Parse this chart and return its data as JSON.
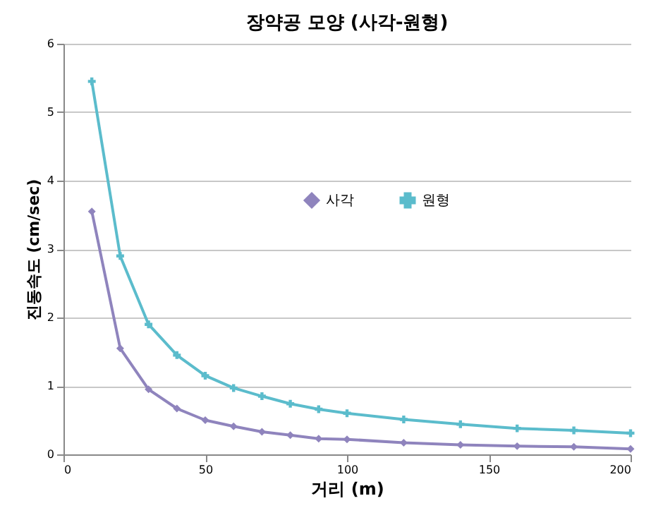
{
  "chart_data": {
    "type": "line",
    "title": "장약공 모양 (사각-원형)",
    "xlabel": "거리 (m)",
    "ylabel": "진동속도 (cm/sec)",
    "x": [
      10,
      20,
      30,
      40,
      50,
      60,
      70,
      80,
      90,
      100,
      120,
      140,
      160,
      180,
      200
    ],
    "series": [
      {
        "name": "사각",
        "color": "#8f84bd",
        "marker": "diamond",
        "values": [
          3.55,
          1.55,
          0.95,
          0.67,
          0.5,
          0.41,
          0.33,
          0.28,
          0.23,
          0.22,
          0.17,
          0.14,
          0.12,
          0.11,
          0.08
        ]
      },
      {
        "name": "원형",
        "color": "#5bbccc",
        "marker": "cross",
        "values": [
          5.45,
          2.9,
          1.9,
          1.45,
          1.15,
          0.97,
          0.85,
          0.74,
          0.66,
          0.6,
          0.51,
          0.44,
          0.38,
          0.35,
          0.31
        ]
      }
    ],
    "xlim": [
      0,
      200
    ],
    "xticks": [
      0,
      50,
      100,
      150,
      200
    ],
    "ylim": [
      0,
      6
    ],
    "yticks": [
      0,
      1,
      2,
      3,
      4,
      5,
      6
    ],
    "grid": "y",
    "legend": "center",
    "line_style": "solid"
  }
}
